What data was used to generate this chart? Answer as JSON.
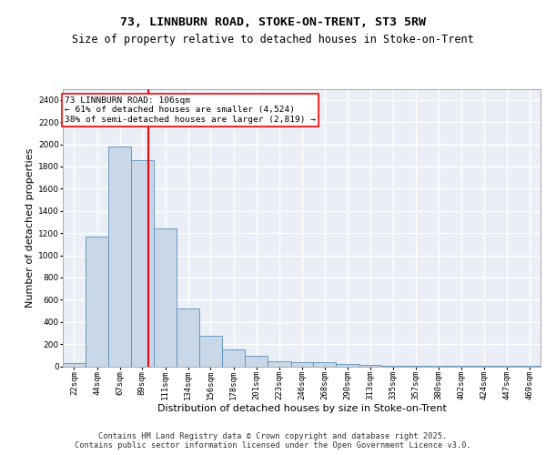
{
  "title": "73, LINNBURN ROAD, STOKE-ON-TRENT, ST3 5RW",
  "subtitle": "Size of property relative to detached houses in Stoke-on-Trent",
  "xlabel": "Distribution of detached houses by size in Stoke-on-Trent",
  "ylabel": "Number of detached properties",
  "bin_labels": [
    "22sqm",
    "44sqm",
    "67sqm",
    "89sqm",
    "111sqm",
    "134sqm",
    "156sqm",
    "178sqm",
    "201sqm",
    "223sqm",
    "246sqm",
    "268sqm",
    "290sqm",
    "313sqm",
    "335sqm",
    "357sqm",
    "380sqm",
    "402sqm",
    "424sqm",
    "447sqm",
    "469sqm"
  ],
  "bar_values": [
    25,
    1170,
    1980,
    1860,
    1240,
    520,
    275,
    155,
    95,
    42,
    38,
    38,
    18,
    10,
    8,
    5,
    3,
    3,
    2,
    2,
    2
  ],
  "bar_color": "#c8d8e8",
  "bar_edge_color": "#5b8db8",
  "vline_x_idx": 3,
  "vline_color": "red",
  "annotation_text": "73 LINNBURN ROAD: 106sqm\n← 61% of detached houses are smaller (4,524)\n38% of semi-detached houses are larger (2,819) →",
  "annotation_box_color": "white",
  "annotation_box_edge_color": "red",
  "ylim": [
    0,
    2500
  ],
  "yticks": [
    0,
    200,
    400,
    600,
    800,
    1000,
    1200,
    1400,
    1600,
    1800,
    2000,
    2200,
    2400
  ],
  "bin_edges": [
    22,
    44,
    67,
    89,
    111,
    134,
    156,
    178,
    201,
    223,
    246,
    268,
    290,
    313,
    335,
    357,
    380,
    402,
    424,
    447,
    469,
    491
  ],
  "footer_line1": "Contains HM Land Registry data © Crown copyright and database right 2025.",
  "footer_line2": "Contains public sector information licensed under the Open Government Licence v3.0.",
  "background_color": "#eaeff7",
  "grid_color": "white",
  "title_fontsize": 9.5,
  "subtitle_fontsize": 8.5,
  "ylabel_fontsize": 8,
  "xlabel_fontsize": 8,
  "tick_fontsize": 6.5,
  "annotation_fontsize": 6.8,
  "footer_fontsize": 6.2,
  "vline_xval": 106
}
